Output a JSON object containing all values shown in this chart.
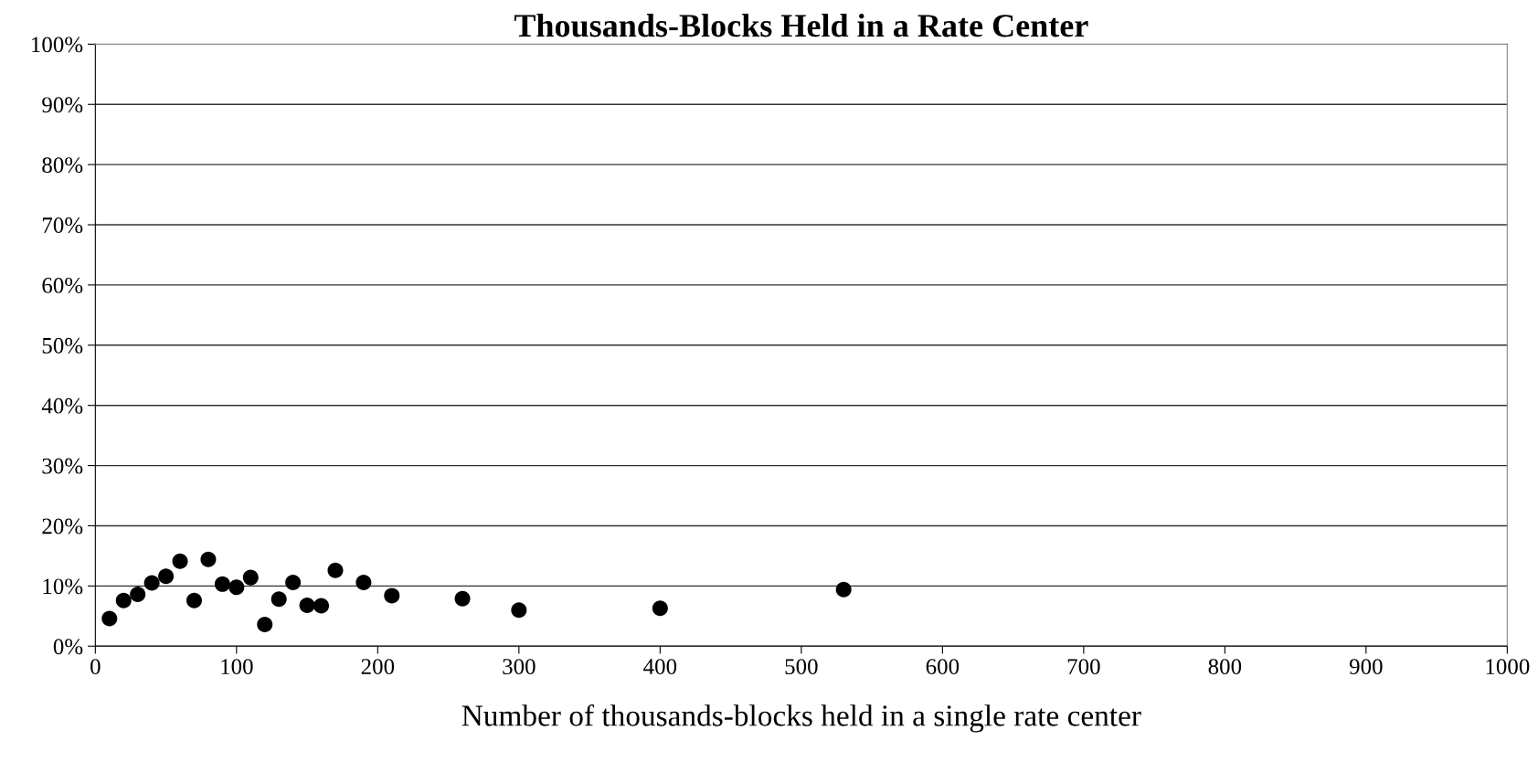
{
  "chart_data": {
    "type": "scatter",
    "title": "Thousands-Blocks Held in a Rate Center",
    "xlabel": "Number of thousands-blocks held in a single rate center",
    "x": [
      10,
      20,
      30,
      40,
      50,
      60,
      70,
      80,
      90,
      100,
      110,
      120,
      130,
      140,
      150,
      160,
      170,
      190,
      210,
      260,
      300,
      400,
      530
    ],
    "values": [
      4.6,
      7.6,
      8.6,
      10.5,
      11.6,
      14.1,
      7.6,
      14.4,
      10.3,
      9.8,
      11.4,
      3.6,
      7.8,
      10.6,
      6.8,
      6.7,
      12.6,
      10.6,
      8.4,
      7.9,
      6.0,
      6.3,
      9.4
    ],
    "color": "#000000",
    "marker": "circle",
    "xlim": [
      0,
      1000
    ],
    "xticks": [
      0,
      100,
      200,
      300,
      400,
      500,
      600,
      700,
      800,
      900,
      1000
    ],
    "ylim": [
      0,
      100
    ],
    "yticks": [
      {
        "value": 0,
        "label": "0%"
      },
      {
        "value": 10,
        "label": "10%"
      },
      {
        "value": 20,
        "label": "20%"
      },
      {
        "value": 30,
        "label": "30%"
      },
      {
        "value": 40,
        "label": "40%"
      },
      {
        "value": 50,
        "label": "50%"
      },
      {
        "value": 60,
        "label": "60%"
      },
      {
        "value": 70,
        "label": "70%"
      },
      {
        "value": 80,
        "label": "80%"
      },
      {
        "value": 90,
        "label": "90%"
      },
      {
        "value": 100,
        "label": "100%"
      }
    ],
    "grid": "y",
    "legend": false
  }
}
